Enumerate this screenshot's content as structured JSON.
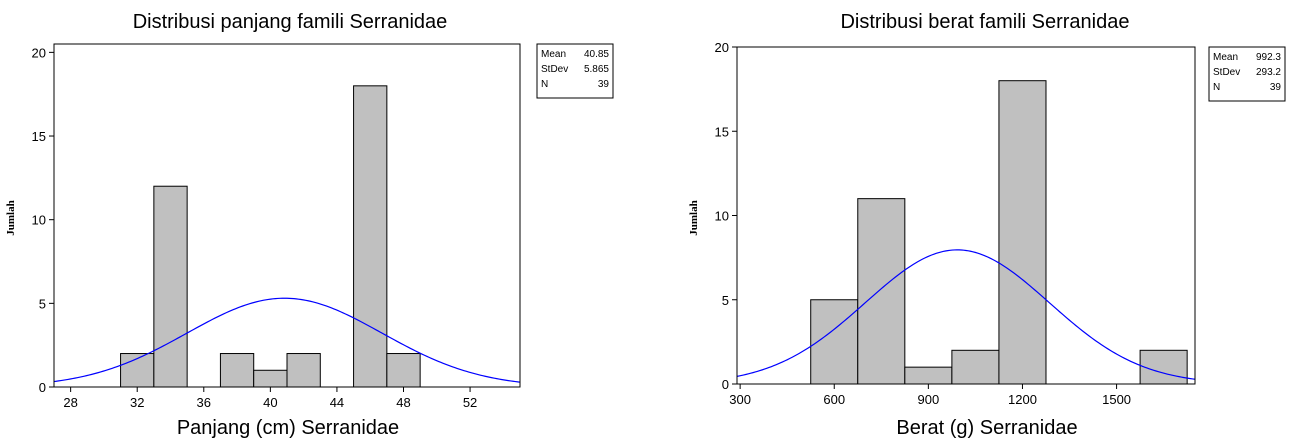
{
  "chart_data": [
    {
      "type": "bar",
      "title": "Distribusi panjang famili Serranidae",
      "xlabel": "Panjang (cm) Serranidae",
      "ylabel": "Jumlah",
      "xlim": [
        27,
        55
      ],
      "ylim": [
        0,
        20.5
      ],
      "xticks": [
        28,
        32,
        36,
        40,
        44,
        48,
        52
      ],
      "yticks": [
        0,
        5,
        10,
        15,
        20
      ],
      "bins": [
        {
          "start": 31,
          "end": 33,
          "count": 2
        },
        {
          "start": 33,
          "end": 35,
          "count": 12
        },
        {
          "start": 35,
          "end": 37,
          "count": 0
        },
        {
          "start": 37,
          "end": 39,
          "count": 2
        },
        {
          "start": 39,
          "end": 41,
          "count": 1
        },
        {
          "start": 41,
          "end": 43,
          "count": 2
        },
        {
          "start": 43,
          "end": 45,
          "count": 0
        },
        {
          "start": 45,
          "end": 47,
          "count": 18
        },
        {
          "start": 47,
          "end": 49,
          "count": 2
        }
      ],
      "fit": {
        "mean": 40.85,
        "stdev": 5.865,
        "n": 39,
        "binwidth": 2
      },
      "stats": [
        {
          "label": "Mean",
          "value": "40.85"
        },
        {
          "label": "StDev",
          "value": "5.865"
        },
        {
          "label": "N",
          "value": "39"
        }
      ],
      "bar_color": "#c0c0c0",
      "curve_color": "#0000ff"
    },
    {
      "type": "bar",
      "title": "Distribusi berat famili Serranidae",
      "xlabel": "Berat (g) Serranidae",
      "ylabel": "Jumlah",
      "xlim": [
        290,
        1750
      ],
      "ylim": [
        0,
        20
      ],
      "xticks": [
        300,
        600,
        900,
        1200,
        1500
      ],
      "yticks": [
        0,
        5,
        10,
        15,
        20
      ],
      "bins": [
        {
          "start": 525,
          "end": 675,
          "count": 5
        },
        {
          "start": 675,
          "end": 825,
          "count": 11
        },
        {
          "start": 825,
          "end": 975,
          "count": 1
        },
        {
          "start": 975,
          "end": 1125,
          "count": 2
        },
        {
          "start": 1125,
          "end": 1275,
          "count": 18
        },
        {
          "start": 1275,
          "end": 1425,
          "count": 0
        },
        {
          "start": 1425,
          "end": 1575,
          "count": 0
        },
        {
          "start": 1575,
          "end": 1725,
          "count": 2
        }
      ],
      "fit": {
        "mean": 992.3,
        "stdev": 293.2,
        "n": 39,
        "binwidth": 150
      },
      "stats": [
        {
          "label": "Mean",
          "value": "992.3"
        },
        {
          "label": "StDev",
          "value": "293.2"
        },
        {
          "label": "N",
          "value": "39"
        }
      ],
      "bar_color": "#c0c0c0",
      "curve_color": "#0000ff"
    }
  ]
}
